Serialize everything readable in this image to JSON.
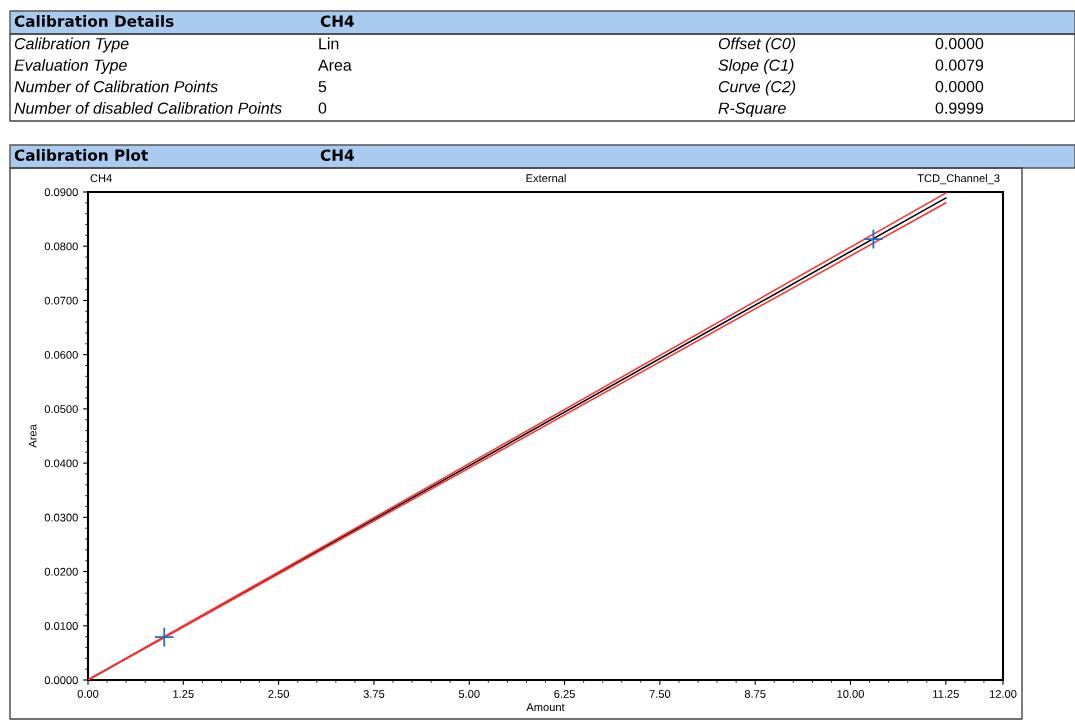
{
  "chart_data": {
    "type": "scatter",
    "title": "Calibration Plot",
    "subtitle": "CH4",
    "xlabel": "Amount",
    "ylabel": "Area",
    "annotations": [
      "Calibration Details",
      "CH4",
      "Calibration Type",
      "Lin",
      "Offset (C0)",
      "0.0000",
      "Evaluation Type",
      "Area",
      "Slope (C1)",
      "0.0079",
      "Number of Calibration Points",
      "5",
      "Curve (C2)",
      "0.0000",
      "Number of disabled Calibration Points",
      "0",
      "R-Square",
      "0.9999",
      "CH4",
      "External",
      "TCD_Channel_3"
    ],
    "series": [
      {
        "type": "line",
        "color": "#000000",
        "x": [
          0,
          11.25
        ],
        "values": [
          0,
          0.0889
        ]
      },
      {
        "type": "line",
        "color": "#ff3030",
        "x": [
          0,
          11.25
        ],
        "values": [
          0,
          0.088
        ]
      },
      {
        "type": "line",
        "color": "#ff3030",
        "x": [
          0,
          11.25
        ],
        "values": [
          0,
          0.0898
        ]
      },
      {
        "color": "#1f6fc0",
        "marker": "cross",
        "x": [
          1.0,
          10.3
        ],
        "values": [
          0.0079,
          0.0813
        ]
      }
    ],
    "xlim": [
      0,
      12
    ],
    "xticks": [
      {
        "value": 0,
        "label": "0.00"
      },
      {
        "value": 1.25,
        "label": "1.25"
      },
      {
        "value": 2.5,
        "label": "2.50"
      },
      {
        "value": 3.75,
        "label": "3.75"
      },
      {
        "value": 5,
        "label": "5.00"
      },
      {
        "value": 6.25,
        "label": "6.25"
      },
      {
        "value": 7.5,
        "label": "7.50"
      },
      {
        "value": 8.75,
        "label": "8.75"
      },
      {
        "value": 10,
        "label": "10.00"
      },
      {
        "value": 11.25,
        "label": "11.25"
      },
      {
        "value": 12,
        "label": "12.00"
      }
    ],
    "ylim": [
      0,
      0.09
    ],
    "yticks": [
      {
        "value": 0,
        "label": "0.0000"
      },
      {
        "value": 0.01,
        "label": "0.0100"
      },
      {
        "value": 0.02,
        "label": "0.0200"
      },
      {
        "value": 0.03,
        "label": "0.0300"
      },
      {
        "value": 0.04,
        "label": "0.0400"
      },
      {
        "value": 0.05,
        "label": "0.0500"
      },
      {
        "value": 0.06,
        "label": "0.0600"
      },
      {
        "value": 0.07,
        "label": "0.0700"
      },
      {
        "value": 0.08,
        "label": "0.0800"
      },
      {
        "value": 0.09,
        "label": "0.0900"
      }
    ],
    "grid": false
  }
}
